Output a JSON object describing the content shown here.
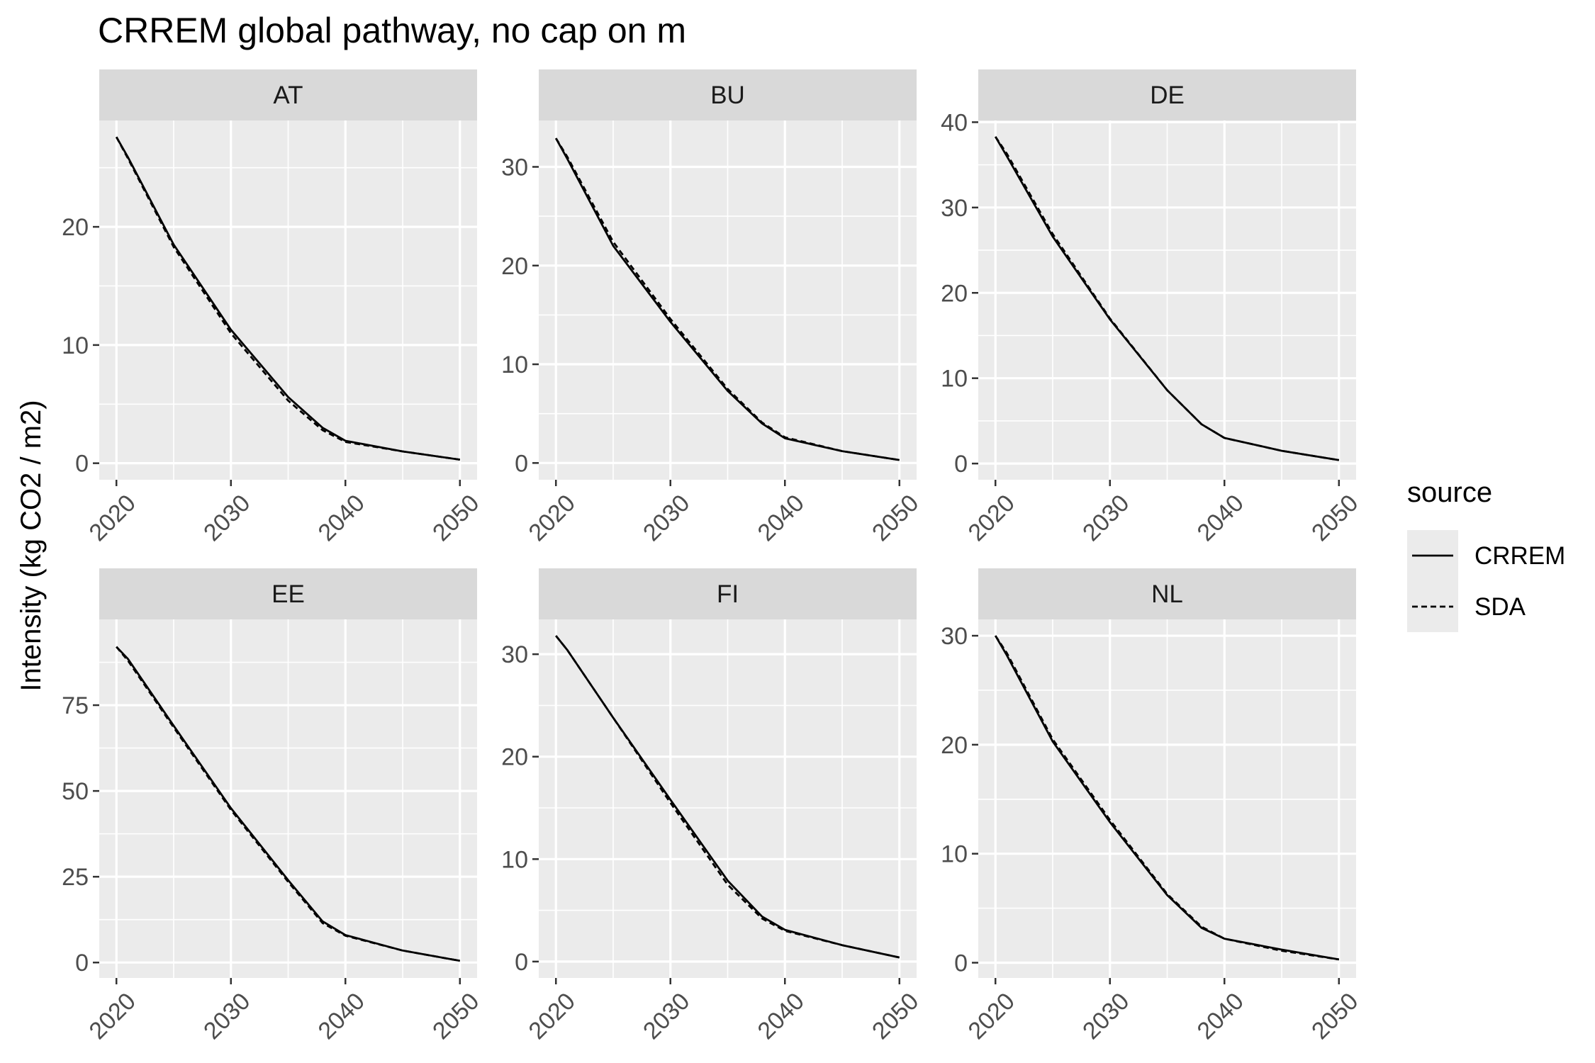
{
  "chart_data": {
    "type": "line",
    "title": "CRREM global pathway, no cap on m",
    "xlabel": "",
    "ylabel": "Intensity (kg CO2 / m2)",
    "legend": {
      "title": "source",
      "position": "right",
      "entries": [
        {
          "name": "CRREM",
          "linestyle": "solid"
        },
        {
          "name": "SDA",
          "linestyle": "dashed"
        }
      ]
    },
    "colors": {
      "panel_background": "#ebebeb",
      "strip_background": "#d9d9d9",
      "grid": "#ffffff",
      "line": "#000000"
    },
    "grid": true,
    "x_ticks": [
      2020,
      2030,
      2040,
      2050
    ],
    "xlim": [
      2018.5,
      2051.5
    ],
    "x": [
      2020,
      2021,
      2025,
      2030,
      2035,
      2038,
      2040,
      2045,
      2050
    ],
    "panels": [
      {
        "label": "AT",
        "ylim": [
          -1.4,
          29
        ],
        "y_ticks": [
          0,
          10,
          20
        ],
        "series": [
          {
            "name": "CRREM",
            "values": [
              27.6,
              25.9,
              18.5,
              11.3,
              5.6,
              3.0,
              1.9,
              1.0,
              0.3
            ]
          },
          {
            "name": "SDA",
            "values": [
              27.6,
              25.8,
              18.3,
              11.0,
              5.3,
              2.8,
              1.8,
              1.0,
              0.3
            ]
          }
        ]
      },
      {
        "label": "BU",
        "ylim": [
          -1.7,
          34.7
        ],
        "y_ticks": [
          0,
          10,
          20,
          30
        ],
        "series": [
          {
            "name": "CRREM",
            "values": [
              32.9,
              30.8,
              22.0,
              14.3,
              7.3,
              4.0,
              2.5,
              1.2,
              0.3
            ]
          },
          {
            "name": "SDA",
            "values": [
              32.9,
              31.0,
              22.4,
              14.6,
              7.5,
              4.1,
              2.6,
              1.2,
              0.3
            ]
          }
        ]
      },
      {
        "label": "DE",
        "ylim": [
          -1.9,
          40.2
        ],
        "y_ticks": [
          0,
          10,
          20,
          30,
          40
        ],
        "series": [
          {
            "name": "CRREM",
            "values": [
              38.3,
              36.0,
              26.6,
              16.9,
              8.6,
              4.6,
              3.0,
              1.5,
              0.4
            ]
          },
          {
            "name": "SDA",
            "values": [
              38.3,
              36.3,
              26.9,
              17.0,
              8.6,
              4.6,
              3.0,
              1.5,
              0.4
            ]
          }
        ]
      },
      {
        "label": "EE",
        "ylim": [
          -4.5,
          100
        ],
        "y_ticks": [
          0,
          25,
          50,
          75
        ],
        "series": [
          {
            "name": "CRREM",
            "values": [
              92.0,
              88.5,
              69.0,
              45.0,
              24.0,
              12.0,
              8.0,
              3.5,
              0.5
            ]
          },
          {
            "name": "SDA",
            "values": [
              92.0,
              88.0,
              68.5,
              44.5,
              23.5,
              11.5,
              7.8,
              3.5,
              0.5
            ]
          }
        ]
      },
      {
        "label": "FI",
        "ylim": [
          -1.6,
          33.4
        ],
        "y_ticks": [
          0,
          10,
          20,
          30
        ],
        "series": [
          {
            "name": "CRREM",
            "values": [
              31.8,
              30.4,
              23.8,
              15.8,
              7.9,
              4.4,
              3.1,
              1.6,
              0.4
            ]
          },
          {
            "name": "SDA",
            "values": [
              31.8,
              30.4,
              23.8,
              15.5,
              7.5,
              4.2,
              3.0,
              1.6,
              0.4
            ]
          }
        ]
      },
      {
        "label": "NL",
        "ylim": [
          -1.4,
          31.5
        ],
        "y_ticks": [
          0,
          10,
          20,
          30
        ],
        "series": [
          {
            "name": "CRREM",
            "values": [
              30.0,
              28.2,
              20.3,
              12.9,
              6.2,
              3.2,
              2.2,
              1.2,
              0.3
            ]
          },
          {
            "name": "SDA",
            "values": [
              30.0,
              28.4,
              20.5,
              13.1,
              6.3,
              3.3,
              2.2,
              1.1,
              0.3
            ]
          }
        ]
      }
    ]
  }
}
